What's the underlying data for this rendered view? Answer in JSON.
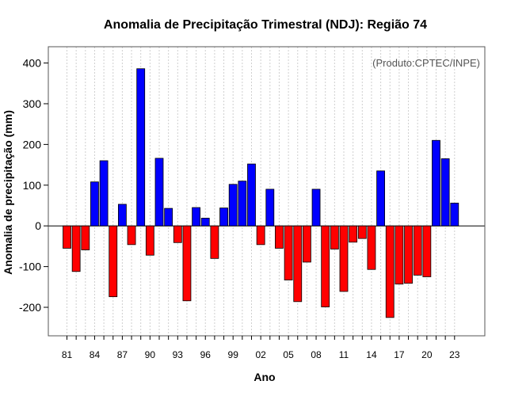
{
  "chart_data": {
    "type": "bar",
    "title": "Anomalia de Precipitação Trimestral (NDJ): Região 74",
    "xlabel": "Ano",
    "ylabel": "Anomalia de precipitação (mm)",
    "credit": "(Produto:CPTEC/INPE)",
    "ylim": [
      -270,
      440
    ],
    "yticks": [
      -200,
      -100,
      0,
      100,
      200,
      300,
      400
    ],
    "positive_color": "#0000ff",
    "negative_color": "#ff0000",
    "grid": true,
    "categories": [
      "81",
      "82",
      "83",
      "84",
      "85",
      "86",
      "87",
      "88",
      "89",
      "90",
      "91",
      "92",
      "93",
      "94",
      "95",
      "96",
      "97",
      "98",
      "99",
      "00",
      "01",
      "02",
      "03",
      "04",
      "05",
      "06",
      "07",
      "08",
      "09",
      "10",
      "11",
      "12",
      "13",
      "14",
      "15",
      "16",
      "17",
      "18",
      "19",
      "20",
      "21",
      "22",
      "23"
    ],
    "x_tick_labels": [
      "81",
      "84",
      "87",
      "90",
      "93",
      "96",
      "99",
      "02",
      "05",
      "08",
      "11",
      "14",
      "17",
      "20",
      "23"
    ],
    "values": [
      -55,
      -112,
      -59,
      108,
      160,
      -174,
      53,
      -46,
      386,
      -72,
      166,
      43,
      -41,
      -184,
      45,
      19,
      -80,
      44,
      102,
      110,
      152,
      -46,
      90,
      -55,
      -133,
      -186,
      -89,
      90,
      -199,
      -57,
      -161,
      -40,
      -31,
      -107,
      135,
      -225,
      -143,
      -141,
      -121,
      -125,
      210,
      165,
      56
    ]
  }
}
